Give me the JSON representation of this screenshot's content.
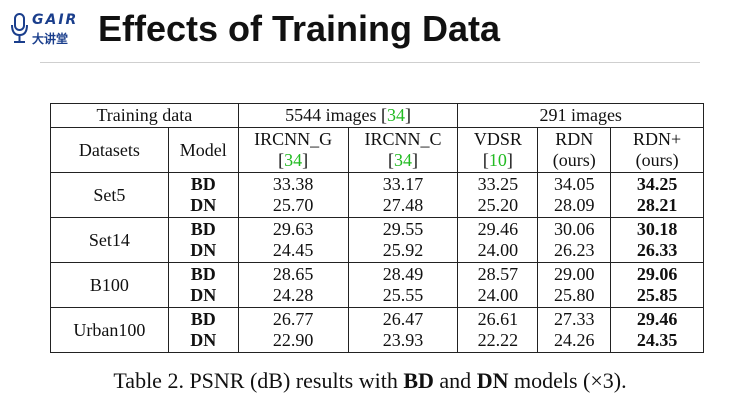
{
  "logo": {
    "brand": "GAIR",
    "chinese": "大讲堂"
  },
  "title": "Effects of Training Data",
  "table": {
    "header1": {
      "training_data": "Training data",
      "group1_prefix": "5544 images [",
      "group1_ref": "34",
      "group1_suffix": "]",
      "group2": "291 images"
    },
    "header2": {
      "datasets": "Datasets",
      "model": "Model",
      "c1_name": "IRCNN_G",
      "c1_ref": "34",
      "c2_name": "IRCNN_C",
      "c2_ref": "34",
      "c3_name": "VDSR",
      "c3_ref": "10",
      "c4_name": "RDN",
      "c4_sub": "(ours)",
      "c5_name": "RDN+",
      "c5_sub": "(ours)"
    },
    "rows": [
      {
        "dataset": "Set5",
        "bd_label": "BD",
        "bd": [
          "33.38",
          "33.17",
          "33.25",
          "34.05",
          "34.25"
        ],
        "dn_label": "DN",
        "dn": [
          "25.70",
          "27.48",
          "25.20",
          "28.09",
          "28.21"
        ]
      },
      {
        "dataset": "Set14",
        "bd_label": "BD",
        "bd": [
          "29.63",
          "29.55",
          "29.46",
          "30.06",
          "30.18"
        ],
        "dn_label": "DN",
        "dn": [
          "24.45",
          "25.92",
          "24.00",
          "26.23",
          "26.33"
        ]
      },
      {
        "dataset": "B100",
        "bd_label": "BD",
        "bd": [
          "28.65",
          "28.49",
          "28.57",
          "29.00",
          "29.06"
        ],
        "dn_label": "DN",
        "dn": [
          "24.28",
          "25.55",
          "24.00",
          "25.80",
          "25.85"
        ]
      },
      {
        "dataset": "Urban100",
        "bd_label": "BD",
        "bd": [
          "26.77",
          "26.47",
          "26.61",
          "27.33",
          "29.46"
        ],
        "dn_label": "DN",
        "dn": [
          "22.90",
          "23.93",
          "22.22",
          "24.26",
          "24.35"
        ]
      }
    ]
  },
  "caption": {
    "part1": "Table 2. PSNR (dB) results with ",
    "bd": "BD",
    "part2": " and ",
    "dn": "DN",
    "part3": " models (×3)."
  },
  "colors": {
    "ref_link": "#22bb22",
    "logo": "#1a3e8c"
  }
}
